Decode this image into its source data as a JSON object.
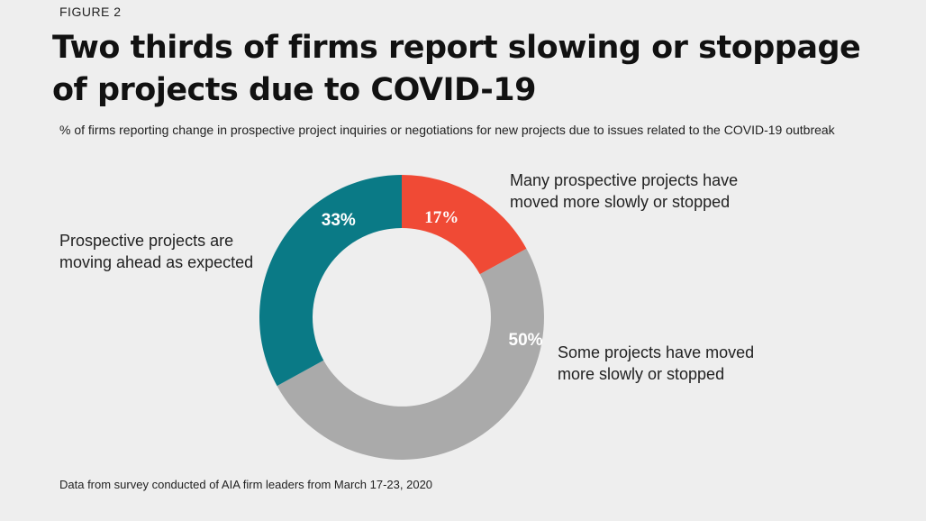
{
  "figure_label": "FIGURE 2",
  "title": "Two thirds of firms report slowing or stoppage of projects due to COVID-19",
  "subtitle": "% of firms reporting change in prospective project inquiries or negotiations for new projects due to issues related to the COVID-19 outbreak",
  "footnote": "Data from survey conducted of AIA firm leaders from March 17-23, 2020",
  "colors": {
    "background": "#eeeeee",
    "red": "#f04a35",
    "gray": "#aaaaaa",
    "teal": "#0a7a86"
  },
  "chart_data": {
    "type": "pie",
    "variant": "donut",
    "title": "Two thirds of firms report slowing or stoppage of projects due to COVID-19",
    "start": "12 o'clock, clockwise",
    "slices": [
      {
        "label": "Many prospective projects have moved more slowly or stopped",
        "value": 17,
        "display": "17%",
        "color": "#f04a35"
      },
      {
        "label": "Some projects have moved more slowly or stopped",
        "value": 50,
        "display": "50%",
        "color": "#aaaaaa"
      },
      {
        "label": "Prospective projects are moving ahead as expected",
        "value": 33,
        "display": "33%",
        "color": "#0a7a86"
      }
    ]
  }
}
